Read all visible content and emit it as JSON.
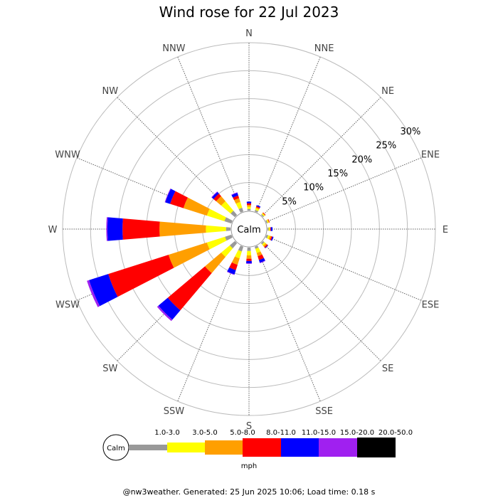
{
  "chart_data": {
    "type": "wind-rose",
    "title": "Wind rose for 22 Jul 2023",
    "directions": [
      "N",
      "NNE",
      "NE",
      "ENE",
      "E",
      "ESE",
      "SE",
      "SSE",
      "S",
      "SSW",
      "SW",
      "WSW",
      "W",
      "WNW",
      "NW",
      "NNW"
    ],
    "ring_labels": [
      "5%",
      "10%",
      "15%",
      "20%",
      "25%",
      "30%"
    ],
    "ring_values": [
      5,
      10,
      15,
      20,
      25,
      30
    ],
    "rmax": 30,
    "calm_label": "Calm",
    "unit": "mph",
    "bins": [
      {
        "label": "1.0-3.0",
        "color": "#999999"
      },
      {
        "label": "3.0-5.0",
        "color": "#ffff00"
      },
      {
        "label": "5.0-8.0",
        "color": "#ff9f00"
      },
      {
        "label": "8.0-11.0",
        "color": "#ff0000"
      },
      {
        "label": "11.0-15.0",
        "color": "#0000ff"
      },
      {
        "label": "15.0-20.0",
        "color": "#a020f0"
      },
      {
        "label": "20.0-50.0",
        "color": "#000000"
      }
    ],
    "series": [
      {
        "dir": "N",
        "values": [
          0.3,
          0.4,
          0.3,
          0.3,
          0.3,
          0,
          0
        ]
      },
      {
        "dir": "NNE",
        "values": [
          0.3,
          0.3,
          0.2,
          0.2,
          0.2,
          0,
          0
        ]
      },
      {
        "dir": "NE",
        "values": [
          0.2,
          0.2,
          0.1,
          0.1,
          0,
          0,
          0
        ]
      },
      {
        "dir": "ENE",
        "values": [
          0.2,
          0.2,
          0.1,
          0.1,
          0,
          0,
          0
        ]
      },
      {
        "dir": "E",
        "values": [
          0.2,
          0.2,
          0.1,
          0.1,
          0.3,
          0,
          0
        ]
      },
      {
        "dir": "ESE",
        "values": [
          0.3,
          0.3,
          0.3,
          0.2,
          0.2,
          0,
          0
        ]
      },
      {
        "dir": "SE",
        "values": [
          0.3,
          0.3,
          0.3,
          0.2,
          0.1,
          0,
          0
        ]
      },
      {
        "dir": "SSE",
        "values": [
          0.4,
          0.8,
          0.6,
          0.7,
          0.5,
          0.1,
          0
        ]
      },
      {
        "dir": "S",
        "values": [
          0.6,
          0.8,
          0.6,
          0.4,
          0.4,
          0.1,
          0
        ]
      },
      {
        "dir": "SSW",
        "values": [
          0.9,
          1.3,
          1.2,
          1.0,
          0.8,
          0.1,
          0
        ]
      },
      {
        "dir": "SW",
        "values": [
          1.2,
          2.0,
          3.8,
          8.7,
          2.2,
          0.3,
          0
        ]
      },
      {
        "dir": "WSW",
        "values": [
          1.2,
          3.4,
          7.2,
          11.3,
          3.6,
          0.4,
          0
        ]
      },
      {
        "dir": "W",
        "values": [
          0.8,
          3.6,
          8.3,
          6.6,
          2.7,
          0.2,
          0
        ]
      },
      {
        "dir": "WNW",
        "values": [
          1.3,
          3.3,
          4.4,
          2.5,
          0.9,
          0.1,
          0
        ]
      },
      {
        "dir": "NW",
        "values": [
          1.0,
          2.2,
          1.2,
          0.6,
          0.4,
          0.1,
          0
        ]
      },
      {
        "dir": "NNW",
        "values": [
          0.7,
          1.1,
          0.7,
          0.5,
          0.5,
          0.1,
          0
        ]
      }
    ]
  },
  "footer": "@nw3weather. Generated: 25 Jun 2025 10:06; Load time: 0.18 s"
}
